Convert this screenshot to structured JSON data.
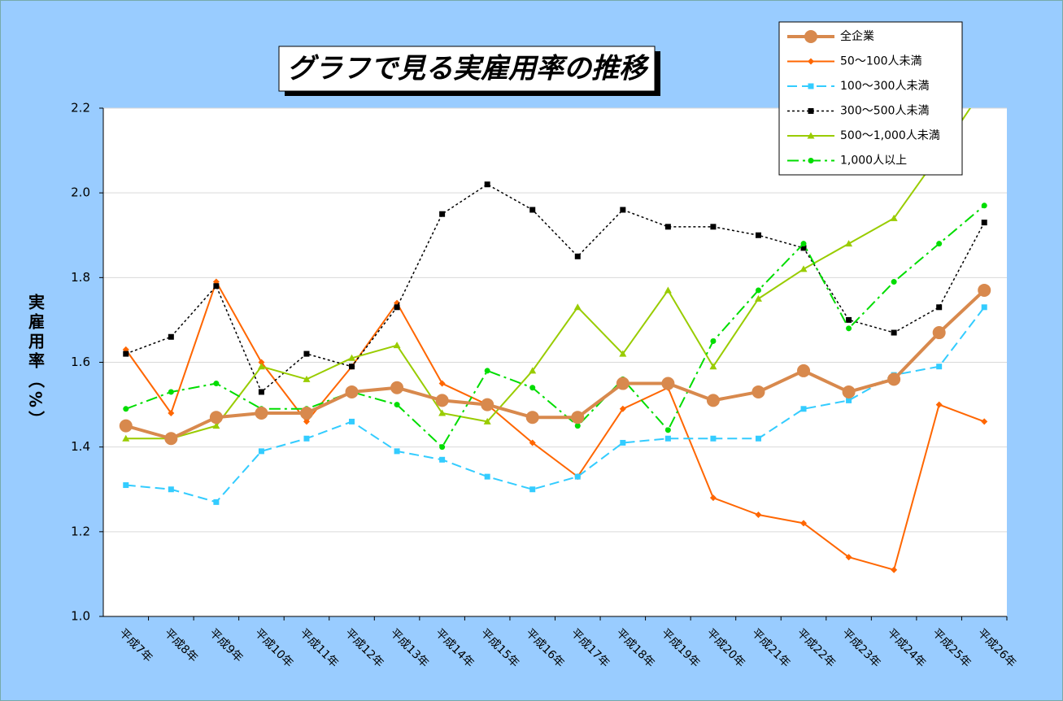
{
  "chart_data": {
    "type": "line",
    "title": "グラフで見る実雇用率の推移",
    "y_label": "実雇用率（%）",
    "categories": [
      "平成7年",
      "平成8年",
      "平成9年",
      "平成10年",
      "平成11年",
      "平成12年",
      "平成13年",
      "平成14年",
      "平成15年",
      "平成16年",
      "平成17年",
      "平成18年",
      "平成19年",
      "平成20年",
      "平成21年",
      "平成22年",
      "平成23年",
      "平成24年",
      "平成25年",
      "平成26年"
    ],
    "ylim": [
      1.0,
      2.2
    ],
    "yticks": [
      {
        "value": 1.0,
        "label": "1.0"
      },
      1.2,
      1.4,
      1.6,
      1.8,
      {
        "value": 2.0,
        "label": "2.0"
      },
      2.2
    ],
    "grid": true,
    "legend": "top-right",
    "series": [
      {
        "name": "全企業",
        "color": "#d8894d",
        "width": 4,
        "marker": "circle",
        "dash": "solid",
        "values": [
          1.45,
          1.42,
          1.47,
          1.48,
          1.48,
          1.53,
          1.54,
          1.51,
          1.5,
          1.47,
          1.47,
          1.55,
          1.55,
          1.51,
          1.53,
          1.58,
          1.53,
          1.56,
          1.67,
          1.77
        ]
      },
      {
        "name": "50～100人未満",
        "color": "#ff6600",
        "width": 2,
        "marker": "diamond",
        "dash": "solid",
        "values": [
          1.63,
          1.48,
          1.79,
          1.6,
          1.46,
          1.59,
          1.74,
          1.55,
          1.5,
          1.41,
          1.33,
          1.49,
          1.54,
          1.28,
          1.24,
          1.22,
          1.14,
          1.11,
          1.5,
          1.46
        ]
      },
      {
        "name": "100～300人未満",
        "color": "#33ccff",
        "width": 2,
        "marker": "square",
        "dash": "dash",
        "values": [
          1.31,
          1.3,
          1.27,
          1.39,
          1.42,
          1.46,
          1.39,
          1.37,
          1.33,
          1.3,
          1.33,
          1.41,
          1.42,
          1.42,
          1.42,
          1.49,
          1.51,
          1.57,
          1.59,
          1.73
        ]
      },
      {
        "name": "300～500人未満",
        "color": "#000000",
        "width": 1.5,
        "marker": "square",
        "dash": "dot",
        "values": [
          1.62,
          1.66,
          1.78,
          1.53,
          1.62,
          1.59,
          1.73,
          1.95,
          2.02,
          1.96,
          1.85,
          1.96,
          1.92,
          1.92,
          1.9,
          1.87,
          1.7,
          1.67,
          1.73,
          1.93
        ]
      },
      {
        "name": "500～1,000人未満",
        "color": "#99cc00",
        "width": 2,
        "marker": "triangle",
        "dash": "solid",
        "values": [
          1.42,
          1.42,
          1.45,
          1.59,
          1.56,
          1.61,
          1.64,
          1.48,
          1.46,
          1.58,
          1.73,
          1.62,
          1.77,
          1.59,
          1.75,
          1.82,
          1.88,
          1.94,
          2.09,
          2.25
        ]
      },
      {
        "name": "1,000人以上",
        "color": "#00dd00",
        "width": 2,
        "marker": "circle-small",
        "dash": "dashdot",
        "values": [
          1.49,
          1.53,
          1.55,
          1.49,
          1.49,
          1.53,
          1.5,
          1.4,
          1.58,
          1.54,
          1.45,
          1.56,
          1.44,
          1.65,
          1.77,
          1.88,
          1.68,
          1.79,
          1.88,
          1.97
        ]
      }
    ]
  }
}
